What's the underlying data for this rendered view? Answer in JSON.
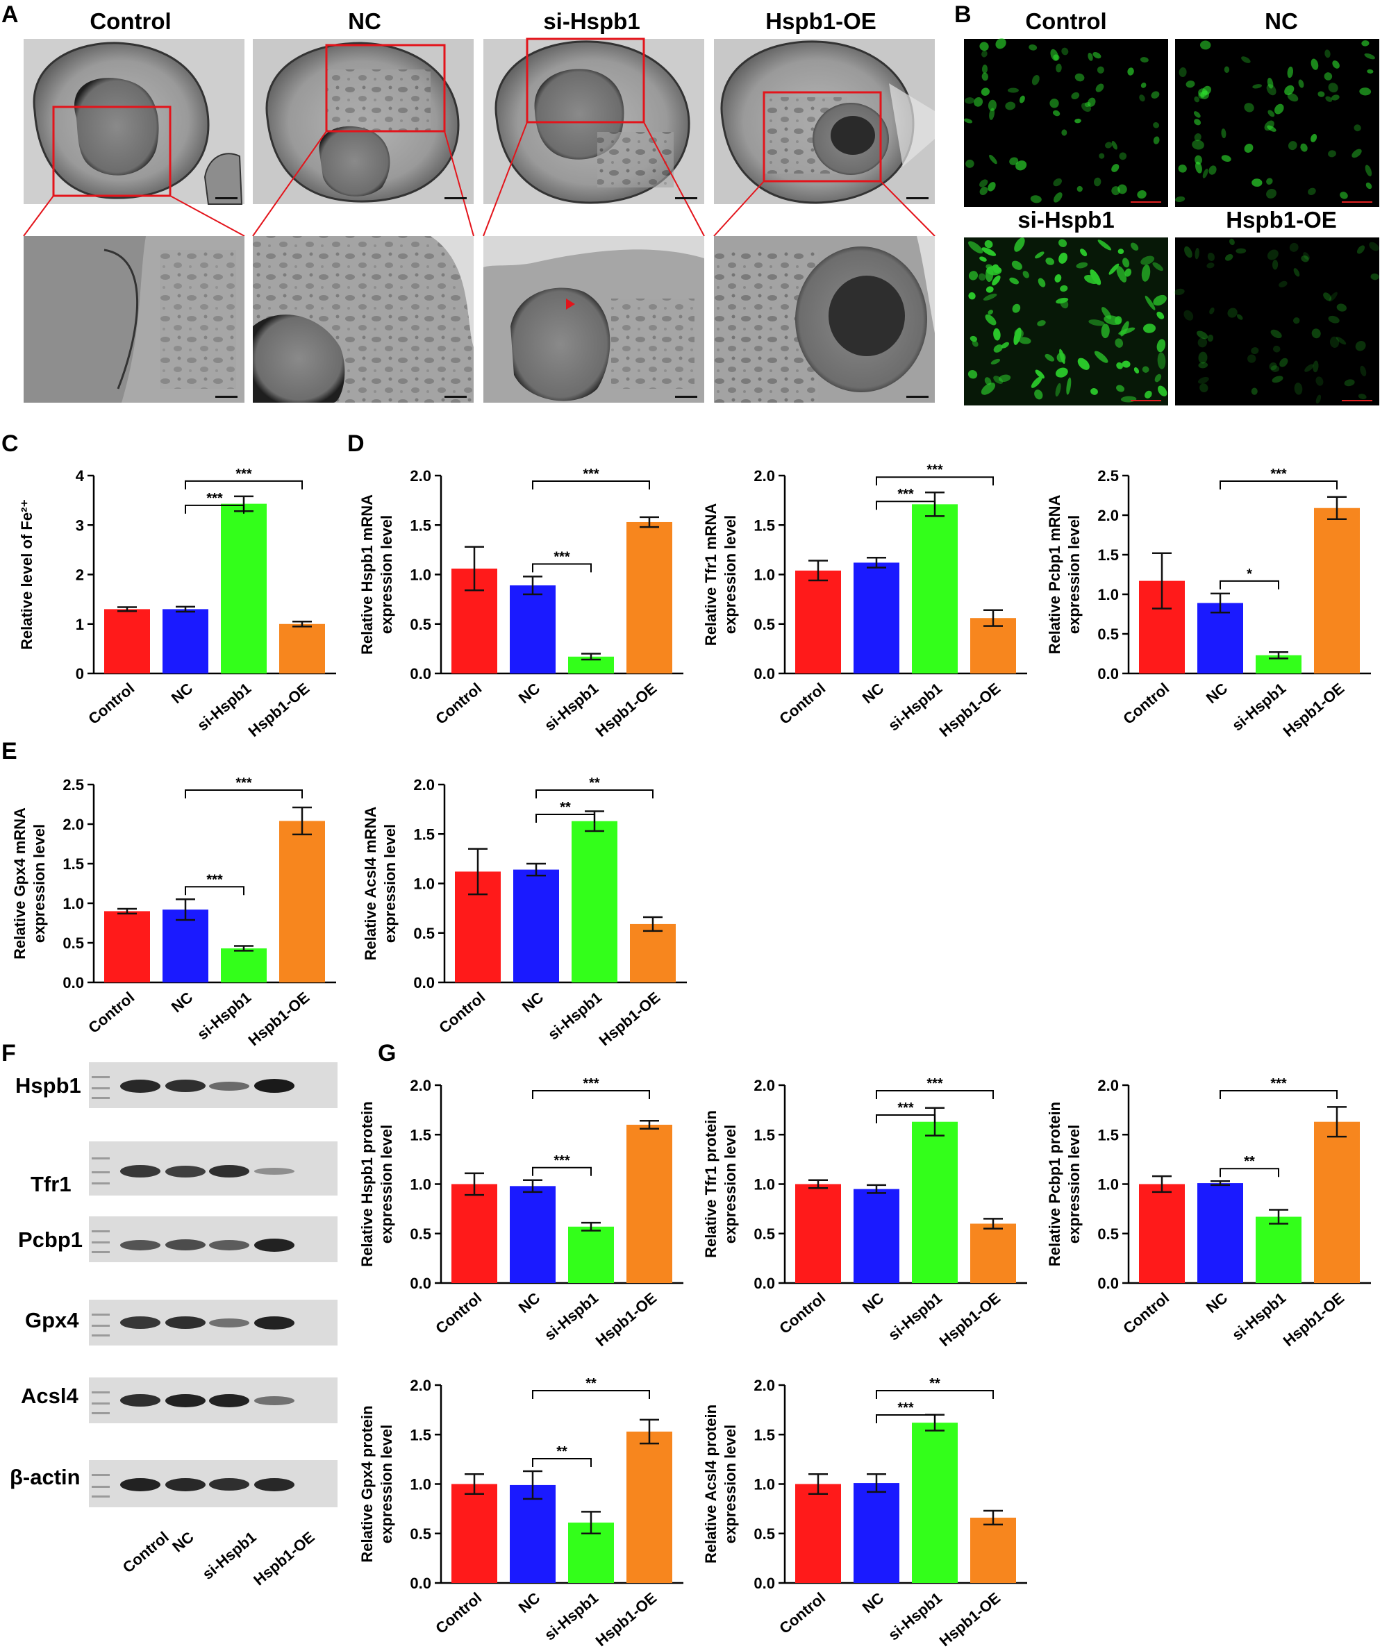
{
  "panel_labels": {
    "A": "A",
    "B": "B",
    "C": "C",
    "D": "D",
    "E": "E",
    "F": "F",
    "G": "G"
  },
  "groups": [
    "Control",
    "NC",
    "si-Hspb1",
    "Hspb1-OE"
  ],
  "colors": {
    "Control": "#ff1a1a",
    "NC": "#1a1aff",
    "si-Hspb1": "#33ff1a",
    "Hspb1-OE": "#f7861e",
    "zoom_box": "#e3141b",
    "fluorescence": "#2fe82f"
  },
  "panel_a": {
    "titles": [
      "Control",
      "NC",
      "si-Hspb1",
      "Hspb1-OE"
    ]
  },
  "panel_b": {
    "titles": [
      "Control",
      "NC",
      "si-Hspb1",
      "Hspb1-OE"
    ],
    "fluorescence_intensity": [
      0.55,
      0.55,
      0.9,
      0.25
    ]
  },
  "panel_f": {
    "proteins": [
      "Hspb1",
      "Tfr1",
      "Pcbp1",
      "Gpx4",
      "Acsl4",
      "β-actin"
    ],
    "lanes": [
      "Control",
      "NC",
      "si-Hspb1",
      "Hspb1-OE"
    ],
    "band_intensity": [
      [
        0.9,
        0.85,
        0.45,
        1.0
      ],
      [
        0.8,
        0.75,
        0.85,
        0.2
      ],
      [
        0.6,
        0.65,
        0.55,
        0.95
      ],
      [
        0.8,
        0.85,
        0.4,
        0.95
      ],
      [
        0.85,
        0.95,
        0.95,
        0.4
      ],
      [
        0.95,
        0.9,
        0.85,
        0.9
      ]
    ]
  },
  "chart_data": [
    {
      "id": "C",
      "type": "bar",
      "categories": [
        "Control",
        "NC",
        "si-Hspb1",
        "Hspb1-OE"
      ],
      "values": [
        1.3,
        1.3,
        3.43,
        1.0
      ],
      "errors": [
        0.04,
        0.05,
        0.15,
        0.05
      ],
      "ylabel": "Relative level of Fe²⁺",
      "ylim": [
        0,
        4
      ],
      "yticks": [
        "0",
        "1",
        "2",
        "3",
        "4"
      ],
      "significance": [
        {
          "from": 1,
          "to": 2,
          "label": "***"
        },
        {
          "from": 1,
          "to": 3,
          "label": "***"
        }
      ]
    },
    {
      "id": "D1",
      "type": "bar",
      "categories": [
        "Control",
        "NC",
        "si-Hspb1",
        "Hspb1-OE"
      ],
      "values": [
        1.06,
        0.89,
        0.17,
        1.53
      ],
      "errors": [
        0.22,
        0.09,
        0.03,
        0.05
      ],
      "ylabel": "Relative Hspb1 mRNA expression level",
      "ylim": [
        0,
        2.0
      ],
      "yticks": [
        "0.0",
        "0.5",
        "1.0",
        "1.5",
        "2.0"
      ],
      "significance": [
        {
          "from": 1,
          "to": 2,
          "label": "***"
        },
        {
          "from": 1,
          "to": 3,
          "label": "***"
        }
      ]
    },
    {
      "id": "D2",
      "type": "bar",
      "categories": [
        "Control",
        "NC",
        "si-Hspb1",
        "Hspb1-OE"
      ],
      "values": [
        1.04,
        1.12,
        1.71,
        0.56
      ],
      "errors": [
        0.1,
        0.05,
        0.12,
        0.08
      ],
      "ylabel": "Relative Tfr1 mRNA expression level",
      "ylim": [
        0,
        2.0
      ],
      "yticks": [
        "0.0",
        "0.5",
        "1.0",
        "1.5",
        "2.0"
      ],
      "significance": [
        {
          "from": 1,
          "to": 2,
          "label": "***"
        },
        {
          "from": 1,
          "to": 3,
          "label": "***"
        }
      ]
    },
    {
      "id": "D3",
      "type": "bar",
      "categories": [
        "Control",
        "NC",
        "si-Hspb1",
        "Hspb1-OE"
      ],
      "values": [
        1.17,
        0.89,
        0.23,
        2.09
      ],
      "errors": [
        0.35,
        0.12,
        0.04,
        0.14
      ],
      "ylabel": "Relative Pcbp1 mRNA expression level",
      "ylim": [
        0,
        2.5
      ],
      "yticks": [
        "0.0",
        "0.5",
        "1.0",
        "1.5",
        "2.0",
        "2.5"
      ],
      "significance": [
        {
          "from": 1,
          "to": 2,
          "label": "*"
        },
        {
          "from": 1,
          "to": 3,
          "label": "***"
        }
      ]
    },
    {
      "id": "E1",
      "type": "bar",
      "categories": [
        "Control",
        "NC",
        "si-Hspb1",
        "Hspb1-OE"
      ],
      "values": [
        0.9,
        0.92,
        0.43,
        2.04
      ],
      "errors": [
        0.03,
        0.13,
        0.03,
        0.17
      ],
      "ylabel": "Relative Gpx4 mRNA expression level",
      "ylim": [
        0,
        2.5
      ],
      "yticks": [
        "0.0",
        "0.5",
        "1.0",
        "1.5",
        "2.0",
        "2.5"
      ],
      "significance": [
        {
          "from": 1,
          "to": 2,
          "label": "***"
        },
        {
          "from": 1,
          "to": 3,
          "label": "***"
        }
      ]
    },
    {
      "id": "E2",
      "type": "bar",
      "categories": [
        "Control",
        "NC",
        "si-Hspb1",
        "Hspb1-OE"
      ],
      "values": [
        1.12,
        1.14,
        1.63,
        0.59
      ],
      "errors": [
        0.23,
        0.06,
        0.1,
        0.07
      ],
      "ylabel": "Relative Acsl4 mRNA expression level",
      "ylim": [
        0,
        2.0
      ],
      "yticks": [
        "0.0",
        "0.5",
        "1.0",
        "1.5",
        "2.0"
      ],
      "significance": [
        {
          "from": 1,
          "to": 2,
          "label": "**"
        },
        {
          "from": 1,
          "to": 3,
          "label": "**"
        }
      ]
    },
    {
      "id": "G1",
      "type": "bar",
      "categories": [
        "Control",
        "NC",
        "si-Hspb1",
        "Hspb1-OE"
      ],
      "values": [
        1.0,
        0.98,
        0.57,
        1.6
      ],
      "errors": [
        0.11,
        0.06,
        0.04,
        0.04
      ],
      "ylabel": "Relative Hspb1 protein expression level",
      "ylim": [
        0,
        2.0
      ],
      "yticks": [
        "0.0",
        "0.5",
        "1.0",
        "1.5",
        "2.0"
      ],
      "significance": [
        {
          "from": 1,
          "to": 2,
          "label": "***"
        },
        {
          "from": 1,
          "to": 3,
          "label": "***"
        }
      ]
    },
    {
      "id": "G2",
      "type": "bar",
      "categories": [
        "Control",
        "NC",
        "si-Hspb1",
        "Hspb1-OE"
      ],
      "values": [
        1.0,
        0.95,
        1.63,
        0.6
      ],
      "errors": [
        0.04,
        0.04,
        0.14,
        0.05
      ],
      "ylabel": "Relative Tfr1 protein expression level",
      "ylim": [
        0,
        2.0
      ],
      "yticks": [
        "0.0",
        "0.5",
        "1.0",
        "1.5",
        "2.0"
      ],
      "significance": [
        {
          "from": 1,
          "to": 2,
          "label": "***"
        },
        {
          "from": 1,
          "to": 3,
          "label": "***"
        }
      ]
    },
    {
      "id": "G3",
      "type": "bar",
      "categories": [
        "Control",
        "NC",
        "si-Hspb1",
        "Hspb1-OE"
      ],
      "values": [
        1.0,
        1.01,
        0.67,
        1.63
      ],
      "errors": [
        0.08,
        0.02,
        0.07,
        0.15
      ],
      "ylabel": "Relative Pcbp1 protein expression level",
      "ylim": [
        0,
        2.0
      ],
      "yticks": [
        "0.0",
        "0.5",
        "1.0",
        "1.5",
        "2.0"
      ],
      "significance": [
        {
          "from": 1,
          "to": 2,
          "label": "**"
        },
        {
          "from": 1,
          "to": 3,
          "label": "***"
        }
      ]
    },
    {
      "id": "G4",
      "type": "bar",
      "categories": [
        "Control",
        "NC",
        "si-Hspb1",
        "Hspb1-OE"
      ],
      "values": [
        1.0,
        0.99,
        0.61,
        1.53
      ],
      "errors": [
        0.1,
        0.14,
        0.11,
        0.12
      ],
      "ylabel": "Relative Gpx4 protein expression level",
      "ylim": [
        0,
        2.0
      ],
      "yticks": [
        "0.0",
        "0.5",
        "1.0",
        "1.5",
        "2.0"
      ],
      "significance": [
        {
          "from": 1,
          "to": 2,
          "label": "**"
        },
        {
          "from": 1,
          "to": 3,
          "label": "**"
        }
      ]
    },
    {
      "id": "G5",
      "type": "bar",
      "categories": [
        "Control",
        "NC",
        "si-Hspb1",
        "Hspb1-OE"
      ],
      "values": [
        1.0,
        1.01,
        1.62,
        0.66
      ],
      "errors": [
        0.1,
        0.09,
        0.08,
        0.07
      ],
      "ylabel": "Relative Acsl4 protein expression level",
      "ylim": [
        0,
        2.0
      ],
      "yticks": [
        "0.0",
        "0.5",
        "1.0",
        "1.5",
        "2.0"
      ],
      "significance": [
        {
          "from": 1,
          "to": 2,
          "label": "***"
        },
        {
          "from": 1,
          "to": 3,
          "label": "**"
        }
      ]
    }
  ]
}
